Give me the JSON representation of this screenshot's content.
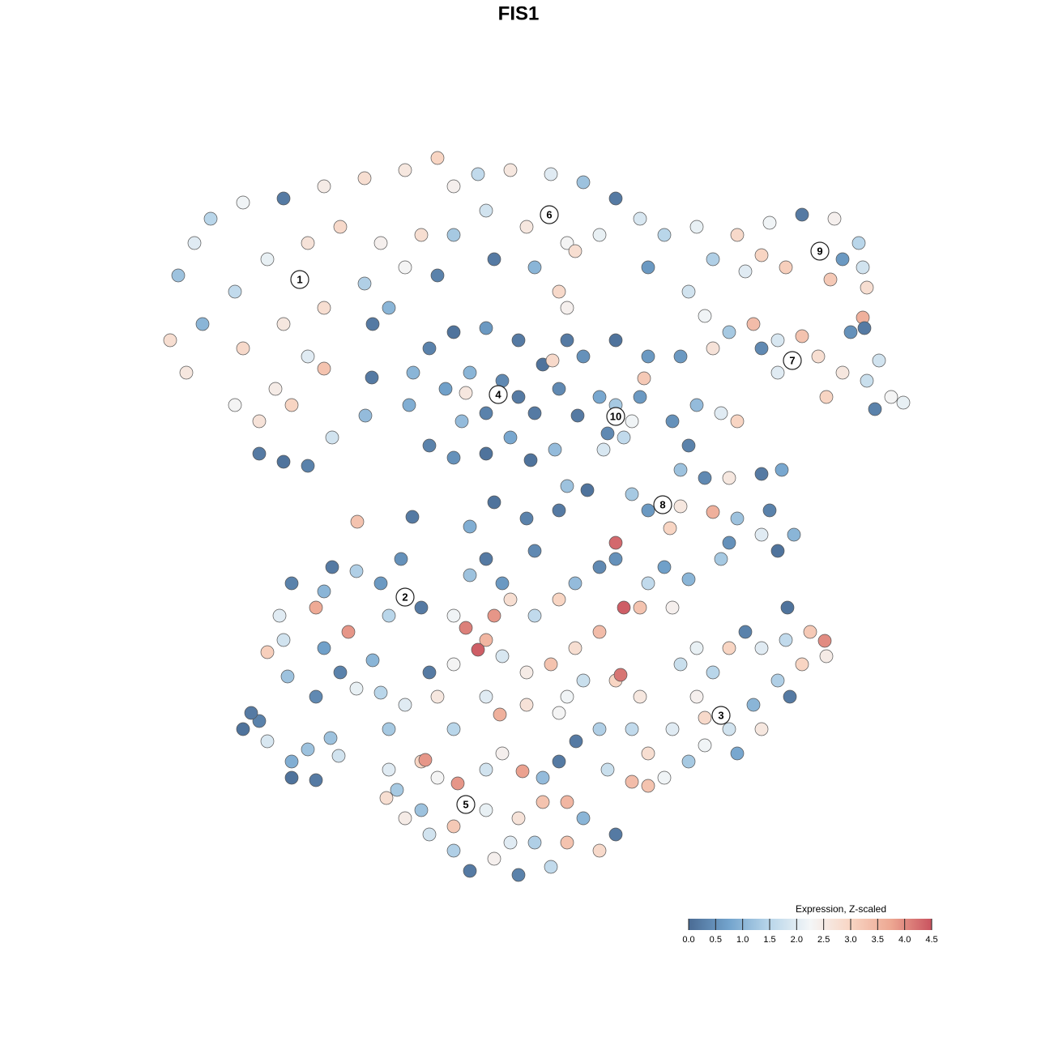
{
  "chart_data": {
    "type": "scatter",
    "title": "FIS1",
    "xlim": [
      0,
      128
    ],
    "ylim": [
      0,
      128
    ],
    "x": [
      22,
      24,
      26,
      30,
      35,
      40,
      45,
      50,
      54,
      56,
      42,
      38,
      33,
      29,
      25,
      21,
      23,
      30,
      35,
      40,
      45,
      50,
      54,
      38,
      40,
      34,
      29,
      32,
      36,
      41,
      32,
      35,
      38,
      46,
      48,
      52,
      47,
      59,
      63,
      68,
      72,
      76,
      79,
      82,
      74,
      70,
      65,
      60,
      56,
      61,
      66,
      71,
      80,
      69,
      70,
      88,
      91,
      95,
      99,
      103,
      106,
      106.5,
      104,
      97,
      94,
      92,
      102.5,
      107,
      106.5,
      106.7,
      86,
      85,
      87,
      90,
      93,
      96,
      99,
      101,
      104,
      107,
      110,
      111.5,
      108,
      102,
      96,
      94,
      88,
      84,
      105,
      108.5,
      51,
      53,
      56,
      60,
      64,
      67,
      69,
      66,
      63,
      60,
      56,
      53,
      50.5,
      55,
      58,
      62,
      60,
      57,
      64,
      57.5,
      70,
      72,
      76,
      80,
      79.5,
      68.2,
      45.9,
      45.1,
      65.5,
      68.5,
      74,
      76,
      78,
      77,
      75,
      74.5,
      79,
      71.3,
      83,
      86,
      89,
      91,
      85,
      84,
      87,
      90,
      94,
      96.5,
      78,
      80,
      84,
      88,
      91,
      95,
      98,
      94,
      90,
      89,
      96,
      82.7,
      30,
      32,
      33,
      36,
      38,
      36,
      39,
      40.8,
      41.8,
      31,
      33,
      35,
      34.5,
      36,
      39,
      40,
      41,
      44,
      47,
      49.5,
      52,
      48,
      43,
      40,
      42,
      44,
      39,
      35.5,
      46,
      47,
      44.1,
      50.9,
      58,
      61,
      65,
      69,
      70,
      72.5,
      66,
      60,
      62,
      58,
      56,
      57.5,
      60,
      61,
      59,
      63,
      66,
      69,
      71,
      74,
      76,
      76,
      77,
      79,
      80,
      82,
      85,
      83,
      74,
      71,
      68,
      65,
      62,
      56,
      53,
      54,
      60,
      65,
      70,
      76,
      76.6,
      72,
      79,
      50,
      48,
      56,
      61.7,
      69,
      74,
      71.1,
      78,
      80,
      82,
      80,
      83,
      86,
      88,
      90,
      92,
      94,
      97,
      100,
      101.8,
      102,
      99,
      96,
      93,
      90,
      87,
      85,
      91,
      94,
      97.5,
      86,
      84,
      87,
      97.2,
      78,
      48,
      49,
      52,
      52.5,
      54,
      56.5,
      60,
      62,
      64.5,
      67,
      69,
      70,
      72,
      74,
      70,
      68,
      64,
      61,
      58,
      56,
      53,
      50,
      52,
      56,
      60,
      64,
      67,
      63,
      66,
      76,
      75,
      47.7
    ],
    "y": [
      94,
      98,
      101,
      103,
      103.5,
      105,
      106,
      107,
      108.5,
      105,
      100,
      98,
      96,
      92,
      88,
      86,
      82,
      85,
      88,
      90,
      93,
      95,
      94,
      84,
      82.5,
      80,
      78,
      76,
      78,
      74,
      72,
      71,
      70.5,
      88,
      90,
      99,
      98,
      106.5,
      107,
      106.5,
      105.5,
      103.5,
      101,
      99,
      99,
      98,
      100,
      102,
      99,
      96,
      95,
      97,
      95,
      92,
      90,
      96,
      99,
      100.5,
      101.5,
      101,
      98,
      95,
      96,
      95,
      96.5,
      94.5,
      93.5,
      92.5,
      88.8,
      87.5,
      100,
      92,
      89,
      87,
      88,
      86,
      86.5,
      84,
      82,
      81,
      79,
      78.3,
      77.5,
      79,
      82,
      85,
      85,
      84,
      87,
      83.5,
      82,
      85,
      87,
      87.5,
      86,
      83,
      80,
      77,
      74,
      72,
      71.5,
      73,
      78,
      80,
      82,
      81,
      77,
      76,
      79,
      79.5,
      86,
      84,
      86,
      84,
      81.3,
      83.5,
      81.4,
      76.7,
      71.2,
      72.5,
      79,
      78,
      76,
      74,
      74.5,
      72.5,
      79,
      76.7,
      76,
      78,
      77,
      76,
      73,
      70,
      69,
      69,
      69.5,
      70,
      67,
      65,
      65.5,
      64.8,
      64,
      65,
      62,
      62,
      61,
      59,
      60,
      62.8,
      38,
      39,
      36.5,
      34,
      35.5,
      32,
      31.7,
      36.9,
      34.7,
      40,
      47.5,
      49,
      52,
      56,
      53,
      55,
      58,
      57.5,
      56,
      59,
      53,
      52,
      50,
      48,
      45,
      43,
      42,
      44.5,
      46.5,
      42.5,
      63.6,
      64.2,
      63,
      66,
      64,
      65,
      68,
      67.5,
      60,
      59,
      56,
      57,
      52,
      50.5,
      49,
      52,
      47.8,
      54,
      52,
      54,
      56,
      58,
      61,
      59,
      53,
      53,
      56,
      58,
      56.5,
      53,
      50,
      48,
      46,
      45,
      47,
      46,
      45,
      42,
      42,
      41,
      42,
      44,
      44.7,
      44,
      42,
      41,
      38,
      38,
      39.8,
      40,
      38,
      36.5,
      38,
      35,
      32,
      31,
      38,
      42,
      45,
      48,
      50,
      48,
      49,
      50,
      48.9,
      47,
      46,
      44,
      41,
      38,
      36,
      34,
      35,
      38,
      42,
      48,
      46,
      39.4,
      53,
      31.5,
      33,
      30.5,
      34,
      34.2,
      32,
      31.3,
      33,
      35,
      32.8,
      32,
      34,
      29,
      27,
      23,
      24,
      21,
      20,
      22,
      20.5,
      23,
      25,
      27,
      28,
      26,
      28,
      27,
      29,
      24,
      24,
      25,
      33,
      29.5
    ],
    "values": [
      1.2,
      2.0,
      1.5,
      2.2,
      0.2,
      2.5,
      2.8,
      2.6,
      3.0,
      2.4,
      2.9,
      2.7,
      2.1,
      1.6,
      1.0,
      2.8,
      2.6,
      2.9,
      2.6,
      2.8,
      1.4,
      2.3,
      0.3,
      2.0,
      3.3,
      2.5,
      2.3,
      2.7,
      3.0,
      1.8,
      0.2,
      0.1,
      0.3,
      0.2,
      1.0,
      2.8,
      2.4,
      1.6,
      2.6,
      2.0,
      1.2,
      0.2,
      1.9,
      1.5,
      2.1,
      2.3,
      2.6,
      1.8,
      1.3,
      0.2,
      1.0,
      2.8,
      0.6,
      2.9,
      2.4,
      1.4,
      2.9,
      2.2,
      0.2,
      2.4,
      1.5,
      1.8,
      0.6,
      3.1,
      3.0,
      2.0,
      3.2,
      2.8,
      3.6,
      0.2,
      2.1,
      1.8,
      2.2,
      1.3,
      3.4,
      1.9,
      3.3,
      2.8,
      2.6,
      1.7,
      2.3,
      2.1,
      0.3,
      3.0,
      2.0,
      0.4,
      2.7,
      0.6,
      0.5,
      1.8,
      1.0,
      0.3,
      0.1,
      0.6,
      0.2,
      0.1,
      0.4,
      0.2,
      0.8,
      0.1,
      0.5,
      0.3,
      0.9,
      0.7,
      1.0,
      0.4,
      0.3,
      1.1,
      0.2,
      2.6,
      0.2,
      0.5,
      0.1,
      0.6,
      3.2,
      2.9,
      0.2,
      1.1,
      0.1,
      1.1,
      0.8,
      1.3,
      2.2,
      1.6,
      0.4,
      1.9,
      0.6,
      0.2,
      0.5,
      1.1,
      2.0,
      3.0,
      0.3,
      1.2,
      0.4,
      2.6,
      0.2,
      0.8,
      1.3,
      0.6,
      2.6,
      3.6,
      1.2,
      0.3,
      1.0,
      2.0,
      0.5,
      1.3,
      0.1,
      3.0,
      0.1,
      0.3,
      1.9,
      0.9,
      1.2,
      0.1,
      0.2,
      1.2,
      1.8,
      0.2,
      3.1,
      1.8,
      2.0,
      0.3,
      3.7,
      1.0,
      0.2,
      1.4,
      0.6,
      0.5,
      0.2,
      1.5,
      3.9,
      0.7,
      0.3,
      2.1,
      0.4,
      1.2,
      1.0,
      1.5,
      3.3,
      0.2,
      0.9,
      0.1,
      0.3,
      0.2,
      1.2,
      0.1,
      0.4,
      0.2,
      0.6,
      1.2,
      2.2,
      4.1,
      3.5,
      3.9,
      4.4,
      2.8,
      1.6,
      3.0,
      1.1,
      0.4,
      4.3,
      0.5,
      4.4,
      3.3,
      1.6,
      0.7,
      1.0,
      2.4,
      3.4,
      2.8,
      3.3,
      2.5,
      1.9,
      2.3,
      0.2,
      2.6,
      2.0,
      2.7,
      2.2,
      3.0,
      4.2,
      1.7,
      2.6,
      2.0,
      1.3,
      1.5,
      3.6,
      2.3,
      1.4,
      0.2,
      1.6,
      2.8,
      2.2,
      3.3,
      2.0,
      2.4,
      1.5,
      3.0,
      0.3,
      2.0,
      1.6,
      3.2,
      4.0,
      2.5,
      3.0,
      1.4,
      1.0,
      1.8,
      2.2,
      1.3,
      0.8,
      2.6,
      0.2,
      2.1,
      1.7,
      2.9,
      0.1,
      3.4,
      2.0,
      1.3,
      3.0,
      3.9,
      2.3,
      3.9,
      1.8,
      2.4,
      3.8,
      1.1,
      0.2,
      3.5,
      1.0,
      2.9,
      3.3,
      1.6,
      0.3,
      2.4,
      0.2,
      1.4,
      1.8,
      2.5,
      1.2,
      3.2,
      2.1,
      2.7,
      3.3,
      2.0,
      1.4,
      0.2,
      1.7,
      2.8
    ],
    "clusters": [
      {
        "label": "1",
        "x": 37,
        "y": 93.5
      },
      {
        "label": "2",
        "x": 50,
        "y": 54.3
      },
      {
        "label": "3",
        "x": 89,
        "y": 39.7
      },
      {
        "label": "4",
        "x": 61.5,
        "y": 79.3
      },
      {
        "label": "5",
        "x": 57.5,
        "y": 28.7
      },
      {
        "label": "6",
        "x": 67.8,
        "y": 101.5
      },
      {
        "label": "7",
        "x": 97.8,
        "y": 83.5
      },
      {
        "label": "8",
        "x": 81.8,
        "y": 65.7
      },
      {
        "label": "9",
        "x": 101.2,
        "y": 97
      },
      {
        "label": "10",
        "x": 76,
        "y": 76.6
      }
    ],
    "colorbar": {
      "title": "Expression, Z-scaled",
      "clim": [
        0,
        4.5
      ],
      "colors": [
        "#4a6b94",
        "#73a4cd",
        "#b9d6ea",
        "#f4f6f7",
        "#f8d5c3",
        "#eda792",
        "#c9535f"
      ],
      "ticks": [
        {
          "value": 0,
          "label": "0.0"
        },
        {
          "value": 0.5,
          "label": "0.5"
        },
        {
          "value": 1,
          "label": "1.0"
        },
        {
          "value": 1.5,
          "label": "1.5"
        },
        {
          "value": 2,
          "label": "2.0"
        },
        {
          "value": 2.5,
          "label": "2.5"
        },
        {
          "value": 3,
          "label": "3.0"
        },
        {
          "value": 3.5,
          "label": "3.5"
        },
        {
          "value": 4,
          "label": "4.0"
        },
        {
          "value": 4.5,
          "label": "4.5"
        }
      ]
    }
  }
}
